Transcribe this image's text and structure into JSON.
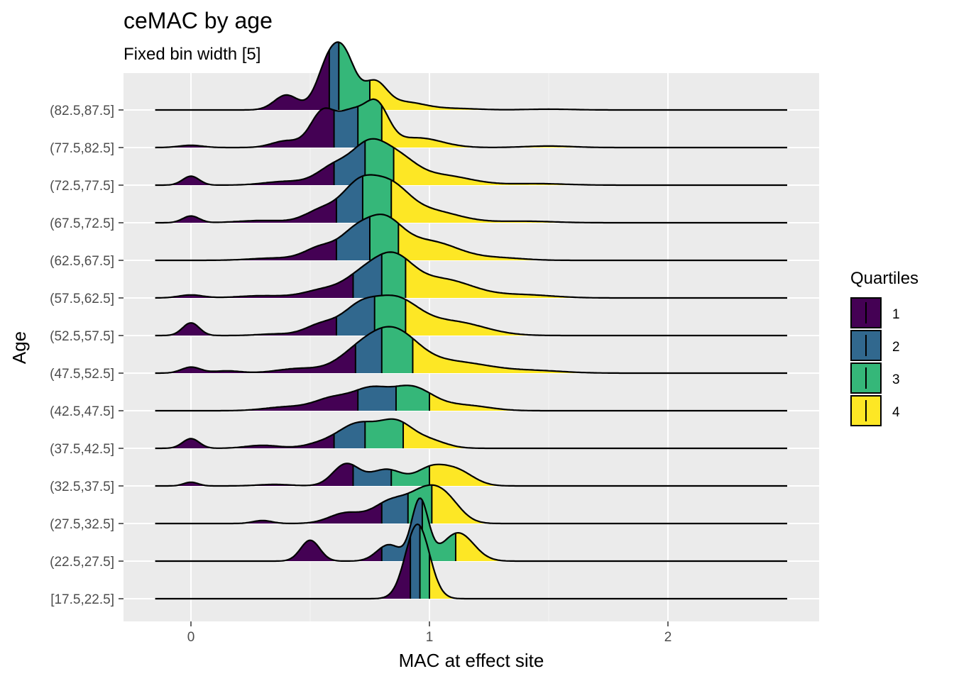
{
  "chart_data": {
    "type": "ridgeline",
    "title": "ceMAC by age",
    "subtitle": "Fixed bin width [5]",
    "xlabel": "MAC at effect site",
    "ylabel": "Age",
    "xlim": [
      -0.15,
      2.5
    ],
    "x_ticks": [
      "0",
      "1",
      "2"
    ],
    "x_tick_values": [
      0,
      1,
      2
    ],
    "grid": true,
    "legend": {
      "title": "Quartiles",
      "position": "right",
      "entries": [
        "1",
        "2",
        "3",
        "4"
      ],
      "colors": [
        "#440154",
        "#31688e",
        "#35b779",
        "#fde725"
      ]
    },
    "categories": [
      "[17.5,22.5]",
      "(22.5,27.5]",
      "(27.5,32.5]",
      "(32.5,37.5]",
      "(37.5,42.5]",
      "(42.5,47.5]",
      "(47.5,52.5]",
      "(52.5,57.5]",
      "(57.5,62.5]",
      "(62.5,67.5]",
      "(67.5,72.5]",
      "(72.5,77.5]",
      "(77.5,82.5]",
      "(82.5,87.5]"
    ],
    "series": [
      {
        "name": "[17.5,22.5]",
        "quartiles": [
          0.92,
          0.96,
          1.0
        ],
        "peaks": [
          [
            0.95,
            1.0,
            0.05
          ]
        ]
      },
      {
        "name": "(22.5,27.5]",
        "quartiles": [
          0.8,
          0.97,
          1.11
        ],
        "peaks": [
          [
            0.5,
            0.28,
            0.04
          ],
          [
            0.83,
            0.22,
            0.05
          ],
          [
            0.96,
            0.82,
            0.035
          ],
          [
            1.12,
            0.38,
            0.065
          ]
        ]
      },
      {
        "name": "(27.5,32.5]",
        "quartiles": [
          0.8,
          0.91,
          1.01
        ],
        "peaks": [
          [
            0.3,
            0.04,
            0.04
          ],
          [
            0.65,
            0.14,
            0.07
          ],
          [
            0.83,
            0.26,
            0.07
          ],
          [
            0.99,
            0.44,
            0.08
          ],
          [
            1.08,
            0.16,
            0.06
          ]
        ]
      },
      {
        "name": "(32.5,37.5]",
        "quartiles": [
          0.68,
          0.84,
          1.0
        ],
        "peaks": [
          [
            0.0,
            0.05,
            0.03
          ],
          [
            0.35,
            0.02,
            0.07
          ],
          [
            0.65,
            0.29,
            0.055
          ],
          [
            0.82,
            0.22,
            0.07
          ],
          [
            1.0,
            0.2,
            0.06
          ],
          [
            1.11,
            0.21,
            0.07
          ]
        ]
      },
      {
        "name": "(37.5,42.5]",
        "quartiles": [
          0.6,
          0.73,
          0.89
        ],
        "peaks": [
          [
            0.0,
            0.13,
            0.035
          ],
          [
            0.3,
            0.04,
            0.07
          ],
          [
            0.55,
            0.06,
            0.07
          ],
          [
            0.7,
            0.32,
            0.08
          ],
          [
            0.86,
            0.33,
            0.07
          ],
          [
            1.0,
            0.1,
            0.07
          ]
        ]
      },
      {
        "name": "(42.5,47.5]",
        "quartiles": [
          0.7,
          0.86,
          1.0
        ],
        "peaks": [
          [
            0.4,
            0.05,
            0.09
          ],
          [
            0.6,
            0.17,
            0.08
          ],
          [
            0.75,
            0.24,
            0.07
          ],
          [
            0.92,
            0.32,
            0.09
          ],
          [
            1.15,
            0.07,
            0.1
          ]
        ]
      },
      {
        "name": "(47.5,52.5]",
        "quartiles": [
          0.69,
          0.8,
          0.93
        ],
        "peaks": [
          [
            0.0,
            0.08,
            0.04
          ],
          [
            0.15,
            0.03,
            0.06
          ],
          [
            0.45,
            0.06,
            0.09
          ],
          [
            0.7,
            0.24,
            0.09
          ],
          [
            0.85,
            0.52,
            0.1
          ],
          [
            1.1,
            0.15,
            0.15
          ],
          [
            1.45,
            0.03,
            0.12
          ]
        ]
      },
      {
        "name": "(52.5,57.5]",
        "quartiles": [
          0.61,
          0.77,
          0.9
        ],
        "peaks": [
          [
            0.0,
            0.17,
            0.035
          ],
          [
            0.35,
            0.02,
            0.07
          ],
          [
            0.55,
            0.15,
            0.07
          ],
          [
            0.7,
            0.28,
            0.07
          ],
          [
            0.85,
            0.48,
            0.1
          ],
          [
            1.1,
            0.18,
            0.13
          ]
        ]
      },
      {
        "name": "(57.5,62.5]",
        "quartiles": [
          0.68,
          0.8,
          0.9
        ],
        "peaks": [
          [
            0.0,
            0.04,
            0.05
          ],
          [
            0.3,
            0.03,
            0.1
          ],
          [
            0.55,
            0.1,
            0.08
          ],
          [
            0.72,
            0.28,
            0.08
          ],
          [
            0.85,
            0.46,
            0.08
          ],
          [
            1.05,
            0.25,
            0.13
          ],
          [
            1.4,
            0.04,
            0.12
          ]
        ]
      },
      {
        "name": "(62.5,67.5]",
        "quartiles": [
          0.61,
          0.75,
          0.87
        ],
        "peaks": [
          [
            0.35,
            0.03,
            0.1
          ],
          [
            0.55,
            0.18,
            0.07
          ],
          [
            0.68,
            0.25,
            0.06
          ],
          [
            0.8,
            0.52,
            0.08
          ],
          [
            1.0,
            0.25,
            0.12
          ],
          [
            1.3,
            0.03,
            0.1
          ]
        ]
      },
      {
        "name": "(67.5,72.5]",
        "quartiles": [
          0.61,
          0.72,
          0.84
        ],
        "peaks": [
          [
            0.0,
            0.09,
            0.035
          ],
          [
            0.3,
            0.03,
            0.1
          ],
          [
            0.55,
            0.17,
            0.07
          ],
          [
            0.7,
            0.45,
            0.07
          ],
          [
            0.83,
            0.45,
            0.08
          ],
          [
            1.0,
            0.16,
            0.12
          ],
          [
            1.4,
            0.02,
            0.12
          ]
        ]
      },
      {
        "name": "(72.5,77.5]",
        "quartiles": [
          0.6,
          0.73,
          0.85
        ],
        "peaks": [
          [
            0.0,
            0.12,
            0.035
          ],
          [
            0.4,
            0.05,
            0.09
          ],
          [
            0.6,
            0.24,
            0.07
          ],
          [
            0.74,
            0.46,
            0.07
          ],
          [
            0.86,
            0.34,
            0.08
          ],
          [
            1.05,
            0.13,
            0.12
          ],
          [
            1.45,
            0.02,
            0.12
          ]
        ]
      },
      {
        "name": "(77.5,82.5]",
        "quartiles": [
          0.6,
          0.7,
          0.8
        ],
        "peaks": [
          [
            0.0,
            0.03,
            0.05
          ],
          [
            0.4,
            0.09,
            0.06
          ],
          [
            0.55,
            0.45,
            0.05
          ],
          [
            0.67,
            0.45,
            0.06
          ],
          [
            0.78,
            0.52,
            0.05
          ],
          [
            0.95,
            0.13,
            0.1
          ],
          [
            1.5,
            0.02,
            0.1
          ]
        ]
      },
      {
        "name": "(82.5,87.5]",
        "quartiles": [
          0.58,
          0.62,
          0.75
        ],
        "peaks": [
          [
            0.4,
            0.2,
            0.05
          ],
          [
            0.58,
            0.64,
            0.05
          ],
          [
            0.65,
            0.55,
            0.045
          ],
          [
            0.77,
            0.36,
            0.05
          ],
          [
            0.9,
            0.1,
            0.08
          ],
          [
            1.1,
            0.02,
            0.1
          ],
          [
            1.5,
            0.01,
            0.1
          ]
        ]
      }
    ]
  }
}
